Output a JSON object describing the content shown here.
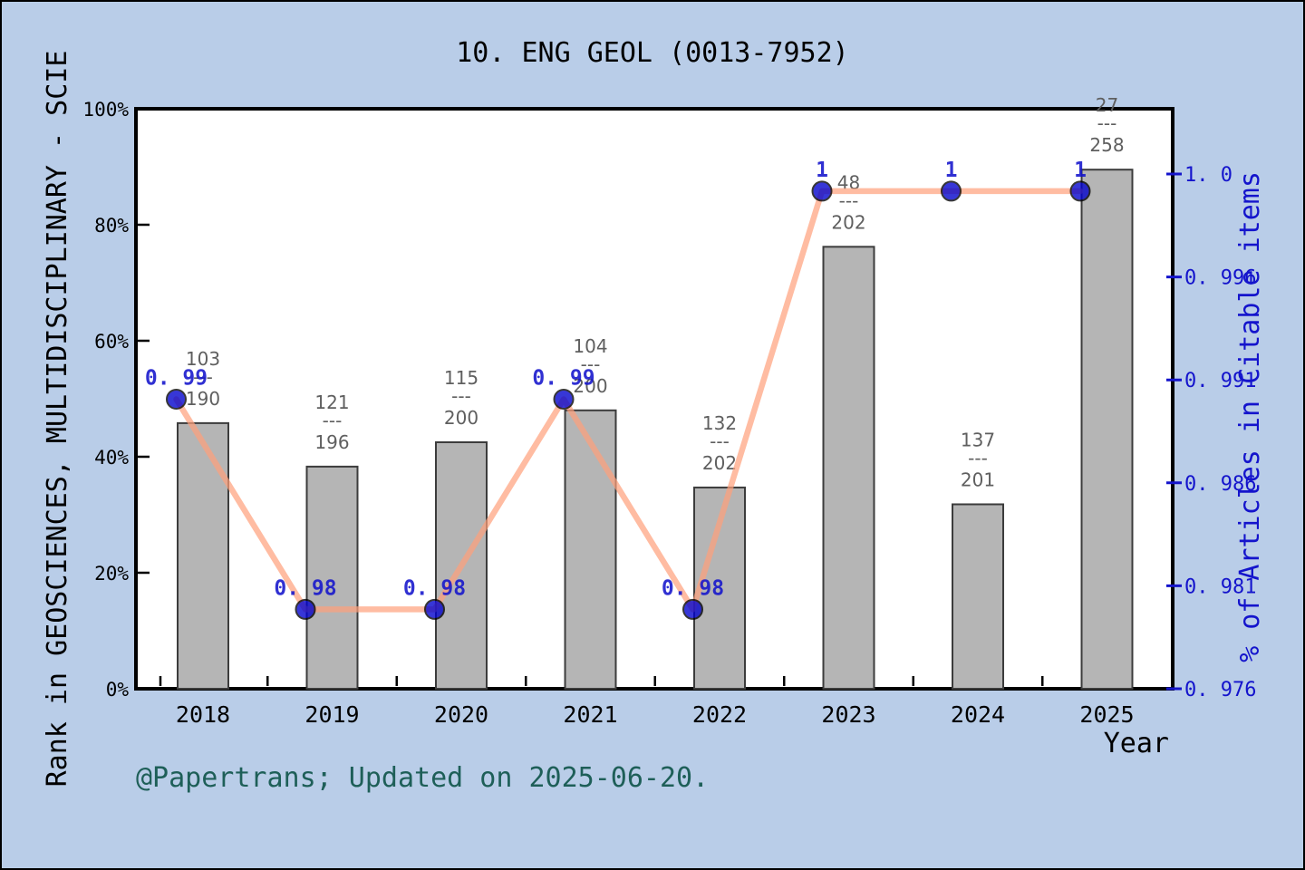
{
  "title": "10. ENG GEOL (0013-7952)",
  "footer": "@Papertrans; Updated on 2025-06-20.",
  "colors": {
    "background": "#b9cde8",
    "plot_background": "#ffffff",
    "frame": "#000000",
    "bar_fill": "#b5b5b5",
    "bar_edge": "#3c3c3c",
    "fraction_text": "#5f5f5f",
    "line": "#ffa07a",
    "marker_fill": "#0000cd",
    "marker_edge": "#000000",
    "blue_text": "#1414cc",
    "left_axis_text": "#000000",
    "footer_text": "#1e5f58"
  },
  "chart_data": {
    "type": "bar+line",
    "title": "10. ENG GEOL (0013-7952)",
    "xlabel": "Year",
    "ylabel_left": "Rank in GEOSCIENCES, MULTIDISCIPLINARY - SCIE",
    "ylabel_right": "% of Articles in Citable items",
    "categories": [
      "2018",
      "2019",
      "2020",
      "2021",
      "2022",
      "2023",
      "2024",
      "2025"
    ],
    "bars": {
      "name": "Rank in GEOSCIENCES, MULTIDISCIPLINARY - SCIE",
      "values_pct": [
        45.8,
        38.3,
        42.5,
        48.0,
        34.7,
        76.2,
        31.8,
        89.5
      ],
      "rank_fractions": [
        {
          "numerator": "103",
          "denominator": "190"
        },
        {
          "numerator": "121",
          "denominator": "196"
        },
        {
          "numerator": "115",
          "denominator": "200"
        },
        {
          "numerator": "104",
          "denominator": "200"
        },
        {
          "numerator": "132",
          "denominator": "202"
        },
        {
          "numerator": "48",
          "denominator": "202"
        },
        {
          "numerator": "137",
          "denominator": "201"
        },
        {
          "numerator": "27",
          "denominator": "258"
        }
      ],
      "fraction_separator": "---"
    },
    "line": {
      "name": "% of Articles in Citable items",
      "values": [
        0.9895,
        0.9797,
        0.9797,
        0.9895,
        0.9797,
        0.9992,
        0.9992,
        0.9992
      ],
      "point_labels": [
        "0. 99",
        "0. 98",
        "0. 98",
        "0. 99",
        "0. 98",
        "1",
        "1",
        "1"
      ]
    },
    "left_axis": {
      "tick_labels_bottom_to_top": [
        "0%",
        "20%",
        "40%",
        "60%",
        "80%",
        "100%"
      ],
      "range_pct": [
        0,
        100
      ]
    },
    "right_axis": {
      "tick_labels_bottom_to_top": [
        "0. 976",
        "0. 981",
        "0. 986",
        "0. 991",
        "0. 996",
        "1. 0"
      ],
      "range": [
        0.976,
        1.0
      ]
    },
    "grid": false,
    "legend": "none"
  }
}
